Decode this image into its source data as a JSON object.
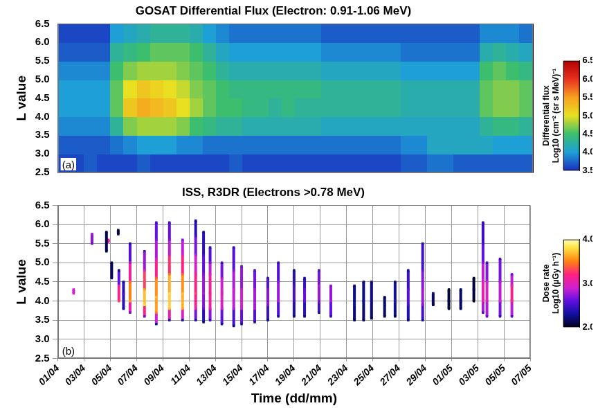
{
  "chart_data": [
    {
      "type": "heatmap",
      "title": "GOSAT Differential Flux (Electron: 0.91-1.06 MeV)",
      "y_label": "L value",
      "xlim": [
        0,
        36
      ],
      "xticks": [
        0,
        2,
        4,
        6,
        8,
        10,
        12,
        14,
        16,
        18,
        20,
        22,
        24,
        26,
        28,
        30,
        32,
        34,
        36
      ],
      "ylim": [
        2.5,
        6.5
      ],
      "yticks": [
        2.5,
        {
          "value": 3,
          "label": "3.0"
        },
        3.5,
        {
          "value": 4,
          "label": "4.0"
        },
        4.5,
        {
          "value": 5,
          "label": "5.0"
        },
        5.5,
        {
          "value": 6,
          "label": "6.0"
        },
        6.5
      ],
      "grid": "x",
      "tick_labels": "y",
      "annotations": [
        "(a)"
      ],
      "cells": {
        "x_bins": [
          0,
          1,
          2,
          3,
          4,
          5,
          6,
          7,
          8,
          9,
          10,
          11,
          12,
          13,
          14,
          15,
          16,
          17,
          18,
          19,
          20,
          21,
          22,
          23,
          24,
          25,
          26,
          27,
          28,
          29,
          30,
          31,
          32,
          33,
          34,
          35,
          36
        ],
        "y_bins": [
          2.5,
          3,
          3.5,
          4,
          4.5,
          5,
          5.5,
          6,
          6.5
        ],
        "values": [
          [
            3.6,
            3.6,
            3.7,
            3.6,
            3.6,
            3.6,
            3.7,
            3.6,
            3.6,
            3.6,
            3.6,
            3.6,
            3.6,
            3.7,
            3.6,
            3.6,
            3.6,
            3.6,
            3.6,
            3.6,
            3.6,
            3.6,
            3.6,
            3.6,
            3.6,
            3.6,
            3.7,
            3.7,
            3.8,
            3.8,
            3.7,
            3.7,
            3.7,
            3.7,
            3.7,
            3.7
          ],
          [
            3.7,
            3.7,
            3.7,
            3.7,
            3.8,
            3.9,
            4.0,
            4.0,
            4.0,
            3.9,
            3.9,
            3.8,
            3.8,
            3.8,
            3.8,
            3.8,
            3.8,
            3.8,
            3.8,
            3.8,
            3.8,
            3.8,
            3.8,
            3.8,
            3.8,
            3.8,
            3.9,
            3.9,
            4.1,
            4.1,
            4.1,
            4.1,
            4.1,
            4.0,
            4.0,
            4.0
          ],
          [
            3.9,
            3.9,
            3.9,
            3.9,
            4.3,
            4.7,
            4.8,
            4.8,
            4.8,
            4.7,
            4.5,
            4.4,
            4.3,
            4.3,
            4.2,
            4.2,
            4.2,
            4.2,
            4.2,
            4.2,
            4.1,
            4.1,
            4.1,
            4.1,
            4.1,
            4.1,
            4.1,
            4.1,
            4.1,
            4.1,
            4.1,
            4.1,
            4.3,
            4.4,
            4.4,
            4.3
          ],
          [
            4.0,
            4.0,
            4.0,
            4.0,
            4.6,
            5.2,
            5.4,
            5.3,
            5.2,
            5.0,
            4.8,
            4.6,
            4.5,
            4.5,
            4.4,
            4.4,
            4.3,
            4.4,
            4.3,
            4.3,
            4.3,
            4.3,
            4.3,
            4.3,
            4.3,
            4.3,
            4.2,
            4.2,
            4.2,
            4.2,
            4.2,
            4.2,
            4.6,
            4.7,
            4.7,
            4.6
          ],
          [
            4.0,
            4.0,
            4.0,
            4.0,
            4.6,
            5.0,
            5.2,
            5.1,
            5.0,
            4.9,
            4.7,
            4.6,
            4.5,
            4.4,
            4.4,
            4.4,
            4.4,
            4.4,
            4.4,
            4.4,
            4.3,
            4.3,
            4.3,
            4.3,
            4.3,
            4.3,
            4.2,
            4.2,
            4.2,
            4.2,
            4.2,
            4.2,
            4.6,
            4.7,
            4.7,
            4.6
          ],
          [
            3.9,
            3.9,
            3.9,
            3.9,
            4.5,
            4.7,
            4.8,
            4.8,
            4.8,
            4.7,
            4.6,
            4.5,
            4.3,
            4.2,
            4.2,
            4.2,
            4.2,
            4.2,
            4.2,
            4.2,
            4.1,
            4.1,
            4.1,
            4.1,
            4.1,
            4.1,
            4.0,
            4.0,
            4.0,
            4.0,
            4.0,
            4.0,
            4.5,
            4.6,
            4.5,
            4.4
          ],
          [
            3.7,
            3.7,
            3.7,
            3.7,
            4.3,
            4.4,
            4.5,
            4.6,
            4.6,
            4.6,
            4.5,
            4.3,
            4.1,
            4.0,
            4.0,
            4.0,
            4.0,
            4.0,
            4.0,
            4.0,
            3.9,
            3.9,
            3.9,
            3.9,
            3.9,
            3.9,
            3.8,
            3.8,
            3.8,
            3.8,
            3.8,
            3.8,
            4.2,
            4.3,
            4.2,
            4.1
          ],
          [
            3.6,
            3.6,
            3.6,
            3.6,
            4.0,
            4.1,
            4.2,
            4.3,
            4.3,
            4.3,
            4.2,
            4.0,
            3.9,
            3.8,
            3.8,
            3.8,
            3.8,
            3.8,
            3.8,
            3.8,
            3.7,
            3.7,
            3.7,
            3.7,
            3.7,
            3.7,
            3.7,
            3.7,
            3.7,
            3.7,
            3.7,
            3.7,
            3.9,
            3.9,
            3.9,
            3.8
          ]
        ]
      },
      "colorbar": {
        "title": "Differential flux",
        "label": "Log10 (cm⁻² (sr s MeV)⁻¹",
        "range": [
          3.5,
          6.5
        ],
        "ticks": [
          3.5,
          {
            "value": 4,
            "label": "4.0"
          },
          4.5,
          {
            "value": 5,
            "label": "5.0"
          },
          5.5,
          {
            "value": 6,
            "label": "6.0"
          },
          6.5
        ]
      }
    },
    {
      "type": "scatter",
      "title": "ISS, R3DR (Electrons >0.78 MeV)",
      "x_label": "Time (dd/mm)",
      "y_label": "L value",
      "xlim": [
        0,
        36
      ],
      "xticks": [
        {
          "value": 0,
          "label": "01/04"
        },
        {
          "value": 2,
          "label": "03/04"
        },
        {
          "value": 4,
          "label": "05/04"
        },
        {
          "value": 6,
          "label": "07/04"
        },
        {
          "value": 8,
          "label": "09/04"
        },
        {
          "value": 10,
          "label": "11/04"
        },
        {
          "value": 12,
          "label": "13/04"
        },
        {
          "value": 14,
          "label": "15/04"
        },
        {
          "value": 16,
          "label": "17/04"
        },
        {
          "value": 18,
          "label": "19/04"
        },
        {
          "value": 20,
          "label": "21/04"
        },
        {
          "value": 22,
          "label": "23/04"
        },
        {
          "value": 24,
          "label": "25/04"
        },
        {
          "value": 26,
          "label": "27/04"
        },
        {
          "value": 28,
          "label": "29/04"
        },
        {
          "value": 30,
          "label": "01/05"
        },
        {
          "value": 32,
          "label": "03/05"
        },
        {
          "value": 34,
          "label": "05/05"
        },
        {
          "value": 36,
          "label": "07/05"
        }
      ],
      "ylim": [
        2.5,
        6.5
      ],
      "yticks": [
        2.5,
        {
          "value": 3,
          "label": "3.0"
        },
        3.5,
        {
          "value": 4,
          "label": "4.0"
        },
        4.5,
        {
          "value": 5,
          "label": "5.0"
        },
        5.5,
        {
          "value": 6,
          "label": "6.0"
        },
        6.5
      ],
      "grid": true,
      "annotations": [
        "(b)"
      ],
      "passes": [
        {
          "x": 1.2,
          "L": [
            4.2,
            4.3
          ],
          "dose": [
            2.9,
            2.9
          ]
        },
        {
          "x": 2.6,
          "L": [
            5.5,
            5.75
          ],
          "dose": [
            2.6,
            2.8
          ]
        },
        {
          "x": 3.7,
          "L": [
            5.3,
            5.8
          ],
          "dose": [
            2.1,
            2.1
          ]
        },
        {
          "x": 3.85,
          "L": [
            5.55,
            5.6
          ],
          "dose": [
            3.1,
            3.1
          ]
        },
        {
          "x": 4.1,
          "L": [
            4.6,
            5.0
          ],
          "dose": [
            2.2,
            2.1
          ]
        },
        {
          "x": 4.6,
          "L": [
            5.75,
            5.85
          ],
          "dose": [
            2.1,
            2.1
          ]
        },
        {
          "x": 4.65,
          "L": [
            4.0,
            4.4,
            4.8
          ],
          "dose": [
            3.3,
            3.0,
            2.2
          ]
        },
        {
          "x": 5.0,
          "L": [
            3.8,
            4.2,
            4.5
          ],
          "dose": [
            2.3,
            2.5,
            2.3
          ]
        },
        {
          "x": 5.5,
          "L": [
            3.7,
            4.0,
            4.5,
            5.0,
            5.5
          ],
          "dose": [
            2.6,
            3.6,
            3.4,
            2.8,
            2.3
          ]
        },
        {
          "x": 6.6,
          "L": [
            3.6,
            3.9,
            4.3,
            4.8,
            5.3
          ],
          "dose": [
            2.6,
            3.8,
            3.6,
            3.0,
            2.5
          ]
        },
        {
          "x": 7.5,
          "L": [
            3.4,
            3.7,
            4.1,
            4.6,
            5.1,
            5.6,
            6.05
          ],
          "dose": [
            2.3,
            3.5,
            3.7,
            3.4,
            2.9,
            2.7,
            2.5
          ]
        },
        {
          "x": 8.5,
          "L": [
            3.5,
            3.8,
            4.2,
            4.7,
            5.2,
            5.6,
            6.05
          ],
          "dose": [
            2.4,
            3.7,
            3.8,
            3.5,
            3.0,
            2.7,
            2.5
          ]
        },
        {
          "x": 9.5,
          "L": [
            3.5,
            3.8,
            4.2,
            4.7,
            5.2,
            5.6
          ],
          "dose": [
            2.3,
            3.6,
            3.7,
            3.4,
            3.0,
            2.7
          ]
        },
        {
          "x": 10.5,
          "L": [
            3.5,
            3.8,
            4.2,
            4.7,
            5.2,
            5.7,
            6.1
          ],
          "dose": [
            2.3,
            3.0,
            3.3,
            3.1,
            2.8,
            2.5,
            2.3
          ]
        },
        {
          "x": 11.1,
          "L": [
            3.45,
            3.8,
            4.2,
            4.7,
            5.2,
            5.8
          ],
          "dose": [
            2.2,
            2.6,
            2.8,
            2.7,
            2.5,
            2.3
          ]
        },
        {
          "x": 11.6,
          "L": [
            3.5,
            3.8,
            4.2,
            4.7,
            5.0,
            5.4
          ],
          "dose": [
            2.4,
            3.0,
            3.2,
            3.0,
            2.7,
            2.4
          ]
        },
        {
          "x": 12.5,
          "L": [
            3.4,
            3.8,
            4.2,
            4.6,
            5.0
          ],
          "dose": [
            2.3,
            2.9,
            3.0,
            2.8,
            2.5
          ]
        },
        {
          "x": 13.4,
          "L": [
            3.35,
            3.8,
            4.3,
            4.8,
            5.4
          ],
          "dose": [
            2.2,
            2.8,
            2.9,
            2.7,
            2.4
          ]
        },
        {
          "x": 14.0,
          "L": [
            3.4,
            3.8,
            4.3,
            4.9
          ],
          "dose": [
            2.3,
            2.9,
            2.9,
            2.6
          ]
        },
        {
          "x": 15.0,
          "L": [
            3.45,
            3.8,
            4.3,
            4.8
          ],
          "dose": [
            2.3,
            2.8,
            2.8,
            2.5
          ]
        },
        {
          "x": 16.0,
          "L": [
            3.5,
            3.9,
            4.3,
            4.6
          ],
          "dose": [
            2.2,
            2.7,
            2.7,
            2.4
          ]
        },
        {
          "x": 16.8,
          "L": [
            3.6,
            4.0,
            4.5,
            5.0
          ],
          "dose": [
            2.3,
            2.8,
            2.7,
            2.4
          ]
        },
        {
          "x": 18.0,
          "L": [
            3.6,
            4.0,
            4.4,
            4.8
          ],
          "dose": [
            2.2,
            2.5,
            2.5,
            2.3
          ]
        },
        {
          "x": 18.8,
          "L": [
            3.6,
            4.0,
            4.3,
            4.6
          ],
          "dose": [
            2.2,
            2.6,
            2.6,
            2.3
          ]
        },
        {
          "x": 19.9,
          "L": [
            3.7,
            4.0,
            4.4,
            4.8
          ],
          "dose": [
            2.3,
            2.7,
            2.8,
            2.5
          ]
        },
        {
          "x": 20.8,
          "L": [
            3.6,
            4.0,
            4.4
          ],
          "dose": [
            2.4,
            2.8,
            2.7
          ]
        },
        {
          "x": 22.6,
          "L": [
            3.5,
            3.9,
            4.4
          ],
          "dose": [
            2.1,
            2.3,
            2.2
          ]
        },
        {
          "x": 23.3,
          "L": [
            3.5,
            4.0,
            4.5
          ],
          "dose": [
            2.1,
            2.3,
            2.2
          ]
        },
        {
          "x": 23.9,
          "L": [
            3.55,
            4.0,
            4.5
          ],
          "dose": [
            2.1,
            2.3,
            2.2
          ]
        },
        {
          "x": 24.9,
          "L": [
            3.6,
            3.9,
            4.1
          ],
          "dose": [
            2.1,
            2.2,
            2.1
          ]
        },
        {
          "x": 25.7,
          "L": [
            3.6,
            4.0,
            4.5
          ],
          "dose": [
            2.1,
            2.4,
            2.2
          ]
        },
        {
          "x": 26.7,
          "L": [
            3.5,
            3.9,
            4.3,
            4.8
          ],
          "dose": [
            2.2,
            2.5,
            2.6,
            2.3
          ]
        },
        {
          "x": 27.8,
          "L": [
            3.5,
            3.9,
            4.3,
            4.8,
            5.5
          ],
          "dose": [
            2.3,
            2.7,
            2.8,
            2.6,
            2.4
          ]
        },
        {
          "x": 28.6,
          "L": [
            3.9,
            4.2
          ],
          "dose": [
            2.1,
            2.2
          ]
        },
        {
          "x": 29.8,
          "L": [
            3.8,
            4.0,
            4.3
          ],
          "dose": [
            2.0,
            2.1,
            2.0
          ]
        },
        {
          "x": 30.7,
          "L": [
            3.8,
            4.0,
            4.3
          ],
          "dose": [
            2.1,
            2.2,
            2.1
          ]
        },
        {
          "x": 31.7,
          "L": [
            4.0,
            4.3,
            4.6
          ],
          "dose": [
            2.0,
            2.1,
            2.0
          ]
        },
        {
          "x": 32.4,
          "L": [
            3.7,
            4.0,
            4.5,
            5.0,
            5.5,
            6.05
          ],
          "dose": [
            2.5,
            3.1,
            3.0,
            2.7,
            2.5,
            2.4
          ]
        },
        {
          "x": 32.7,
          "L": [
            3.6,
            4.0,
            4.5,
            5.0
          ],
          "dose": [
            2.6,
            3.0,
            2.9,
            2.5
          ]
        },
        {
          "x": 33.7,
          "L": [
            3.6,
            4.0,
            4.5,
            5.1
          ],
          "dose": [
            2.4,
            2.9,
            2.8,
            2.5
          ]
        },
        {
          "x": 34.6,
          "L": [
            3.6,
            4.0,
            4.4,
            4.7
          ],
          "dose": [
            2.5,
            3.2,
            3.1,
            2.6
          ]
        }
      ],
      "colorbar": {
        "title": "Dose rate",
        "label": "Log10 (µGy h⁻¹)",
        "range": [
          2,
          4
        ],
        "ticks": [
          {
            "value": 2,
            "label": "2.0"
          },
          {
            "value": 3,
            "label": "3.0"
          },
          {
            "value": 4,
            "label": "4.0"
          }
        ]
      }
    }
  ]
}
